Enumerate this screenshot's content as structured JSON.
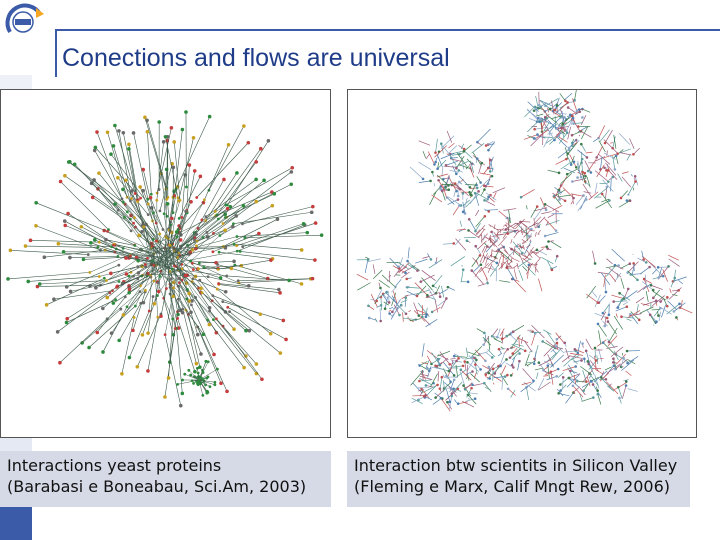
{
  "slide": {
    "title": "Conections and flows are universal",
    "accent_color": "#3b5ba8",
    "title_color": "#1f3c88",
    "logo": "institution-logo"
  },
  "figures": [
    {
      "image": "yeast-protein-interaction-network",
      "caption_line1": "Interactions yeast proteins",
      "caption_line2": "(Barabasi e Boneabau, Sci.Am, 2003)"
    },
    {
      "image": "silicon-valley-scientist-network",
      "caption_line1": "Interaction btw scientits in Silicon Valley",
      "caption_line2": "(Fleming e Marx, Calif Mngt Rew, 2006)"
    }
  ]
}
